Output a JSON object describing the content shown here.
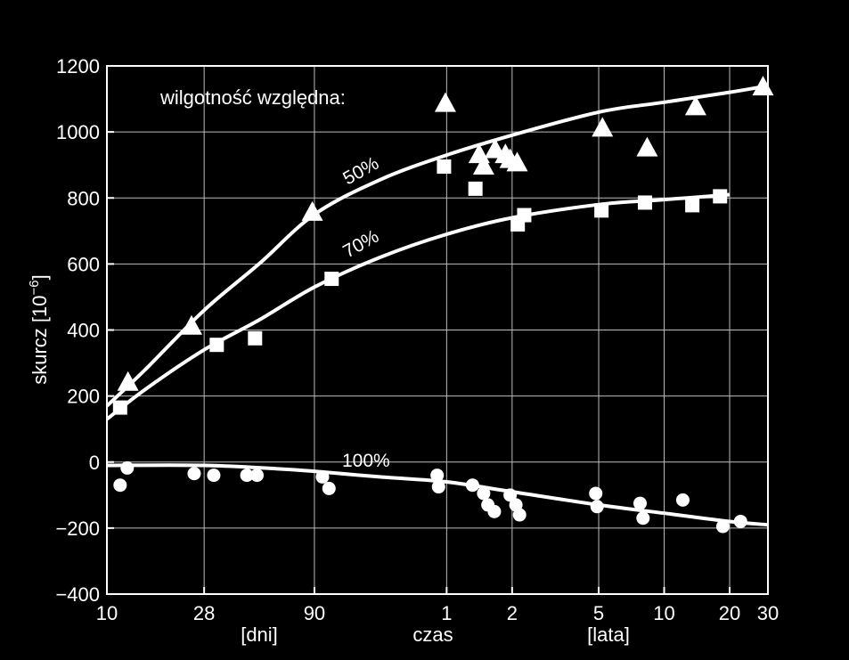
{
  "chart_data": {
    "type": "scatter",
    "title": "",
    "x_scale": "log",
    "x_unit_note": "x values expressed in days; ticks 1–30 on the right are years",
    "xlim_days": [
      10,
      10957
    ],
    "ylim": [
      -400,
      1200
    ],
    "grid": true,
    "colors": {
      "background": "#000000",
      "foreground": "#ffffff",
      "grid": "#bdbdbd"
    },
    "x_ticks": [
      {
        "value": 10,
        "label": "10"
      },
      {
        "value": 28,
        "label": "28"
      },
      {
        "value": 90,
        "label": "90"
      },
      {
        "value": 365,
        "label": "1"
      },
      {
        "value": 730,
        "label": "2"
      },
      {
        "value": 1826,
        "label": "5"
      },
      {
        "value": 3652,
        "label": "10"
      },
      {
        "value": 7305,
        "label": "20"
      },
      {
        "value": 10957,
        "label": "30"
      }
    ],
    "y_ticks": [
      {
        "value": 1200,
        "label": "1200"
      },
      {
        "value": 1000,
        "label": "1000"
      },
      {
        "value": 800,
        "label": "800"
      },
      {
        "value": 600,
        "label": "600"
      },
      {
        "value": 400,
        "label": "400"
      },
      {
        "value": 200,
        "label": "200"
      },
      {
        "value": 0,
        "label": "0"
      },
      {
        "value": -200,
        "label": "−200"
      },
      {
        "value": -400,
        "label": "−400"
      }
    ],
    "ylabel": "skurcz [10",
    "ylabel_exponent": "−6",
    "ylabel_suffix": "]",
    "xlabel": "czas",
    "xlabel_days": "[dni]",
    "xlabel_years": "[lata]",
    "legend_title": "wilgotność względna:",
    "series": [
      {
        "name": "50%",
        "marker": "triangle",
        "points": [
          [
            12.5,
            240
          ],
          [
            24.5,
            410
          ],
          [
            88,
            755
          ],
          [
            360,
            1085
          ],
          [
            515,
            930
          ],
          [
            540,
            895
          ],
          [
            610,
            945
          ],
          [
            680,
            930
          ],
          [
            715,
            915
          ],
          [
            770,
            905
          ],
          [
            1900,
            1010
          ],
          [
            3050,
            950
          ],
          [
            5100,
            1075
          ],
          [
            10400,
            1135
          ]
        ],
        "curve": [
          [
            10,
            170
          ],
          [
            15,
            280
          ],
          [
            28,
            460
          ],
          [
            50,
            600
          ],
          [
            90,
            750
          ],
          [
            180,
            855
          ],
          [
            365,
            930
          ],
          [
            730,
            990
          ],
          [
            1826,
            1060
          ],
          [
            3652,
            1090
          ],
          [
            7305,
            1120
          ],
          [
            10957,
            1140
          ]
        ]
      },
      {
        "name": "70%",
        "marker": "square",
        "points": [
          [
            11.5,
            165
          ],
          [
            32,
            355
          ],
          [
            48,
            375
          ],
          [
            108,
            555
          ],
          [
            355,
            895
          ],
          [
            495,
            828
          ],
          [
            775,
            720
          ],
          [
            830,
            748
          ],
          [
            1880,
            762
          ],
          [
            2980,
            786
          ],
          [
            4920,
            778
          ],
          [
            6600,
            805
          ]
        ],
        "curve": [
          [
            10,
            130
          ],
          [
            15,
            220
          ],
          [
            28,
            340
          ],
          [
            50,
            430
          ],
          [
            90,
            530
          ],
          [
            180,
            620
          ],
          [
            365,
            690
          ],
          [
            730,
            740
          ],
          [
            1826,
            780
          ],
          [
            3652,
            795
          ],
          [
            7305,
            810
          ]
        ]
      },
      {
        "name": "100%",
        "marker": "circle",
        "points": [
          [
            11.5,
            -70
          ],
          [
            12.4,
            -18
          ],
          [
            25.2,
            -35
          ],
          [
            31,
            -40
          ],
          [
            44,
            -40
          ],
          [
            49,
            -40
          ],
          [
            98,
            -45
          ],
          [
            105,
            -80
          ],
          [
            330,
            -40
          ],
          [
            335,
            -75
          ],
          [
            480,
            -70
          ],
          [
            540,
            -95
          ],
          [
            565,
            -130
          ],
          [
            605,
            -150
          ],
          [
            715,
            -100
          ],
          [
            760,
            -130
          ],
          [
            790,
            -160
          ],
          [
            1770,
            -95
          ],
          [
            1795,
            -135
          ],
          [
            2830,
            -125
          ],
          [
            2920,
            -170
          ],
          [
            4450,
            -115
          ],
          [
            6800,
            -195
          ],
          [
            8200,
            -180
          ]
        ],
        "curve": [
          [
            10,
            -10
          ],
          [
            28,
            -10
          ],
          [
            60,
            -20
          ],
          [
            90,
            -28
          ],
          [
            180,
            -45
          ],
          [
            365,
            -60
          ],
          [
            730,
            -90
          ],
          [
            1826,
            -130
          ],
          [
            3652,
            -155
          ],
          [
            7305,
            -180
          ],
          [
            10957,
            -190
          ]
        ]
      }
    ]
  }
}
